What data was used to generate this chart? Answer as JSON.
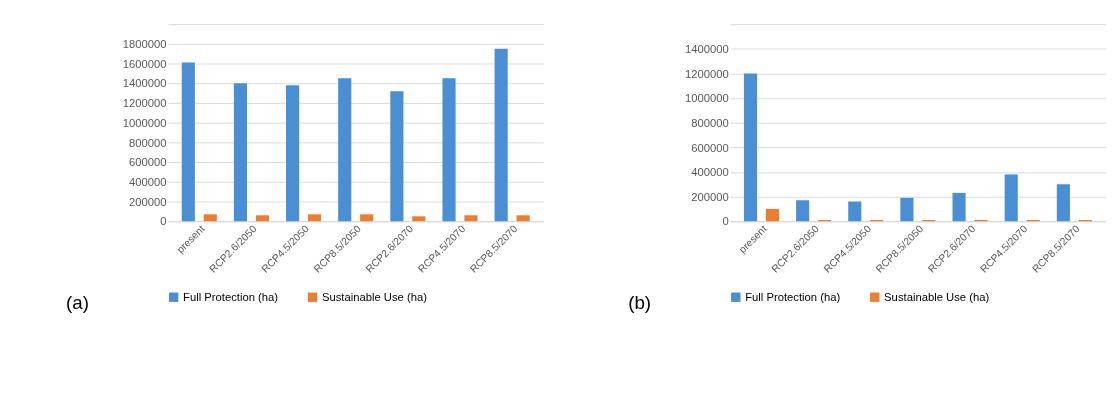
{
  "chart_data": [
    {
      "type": "bar",
      "annotations": [
        "(a)"
      ],
      "categories": [
        "present",
        "RCP2.6/2050",
        "RCP4.5/2050",
        "RCP8.5/2050",
        "RCP2.6/2070",
        "RCP4.5/2070",
        "RCP8.5/2070"
      ],
      "series": [
        {
          "name": "Full Protection (ha)",
          "color": "#4a8fd4",
          "values": [
            1610000,
            1400000,
            1380000,
            1450000,
            1320000,
            1450000,
            1750000
          ]
        },
        {
          "name": "Sustainable Use (ha)",
          "color": "#ed7d31",
          "values": [
            70000,
            60000,
            70000,
            70000,
            50000,
            60000,
            60000
          ]
        }
      ],
      "ylim": [
        0,
        2000000
      ],
      "yticks": [
        0,
        200000,
        400000,
        600000,
        800000,
        1000000,
        1200000,
        1400000,
        1600000,
        1800000,
        {
          "value": 2000000,
          "label": null
        }
      ],
      "grid": "y",
      "legend": "bottom"
    },
    {
      "type": "bar",
      "annotations": [
        "(b)"
      ],
      "categories": [
        "present",
        "RCP2.6/2050",
        "RCP4.5/2050",
        "RCP8.5/2050",
        "RCP2.6/2070",
        "RCP4.5/2070",
        "RCP8.5/2070"
      ],
      "series": [
        {
          "name": "Full Protection (ha)",
          "color": "#4a8fd4",
          "values": [
            1200000,
            170000,
            160000,
            190000,
            230000,
            380000,
            300000
          ]
        },
        {
          "name": "Sustainable Use (ha)",
          "color": "#ed7d31",
          "values": [
            100000,
            10000,
            10000,
            10000,
            10000,
            10000,
            10000
          ]
        }
      ],
      "ylim": [
        0,
        1600000
      ],
      "yticks": [
        0,
        200000,
        400000,
        600000,
        800000,
        1000000,
        1200000,
        1400000,
        {
          "value": 1600000,
          "label": null
        }
      ],
      "grid": "y",
      "legend": "bottom"
    }
  ]
}
